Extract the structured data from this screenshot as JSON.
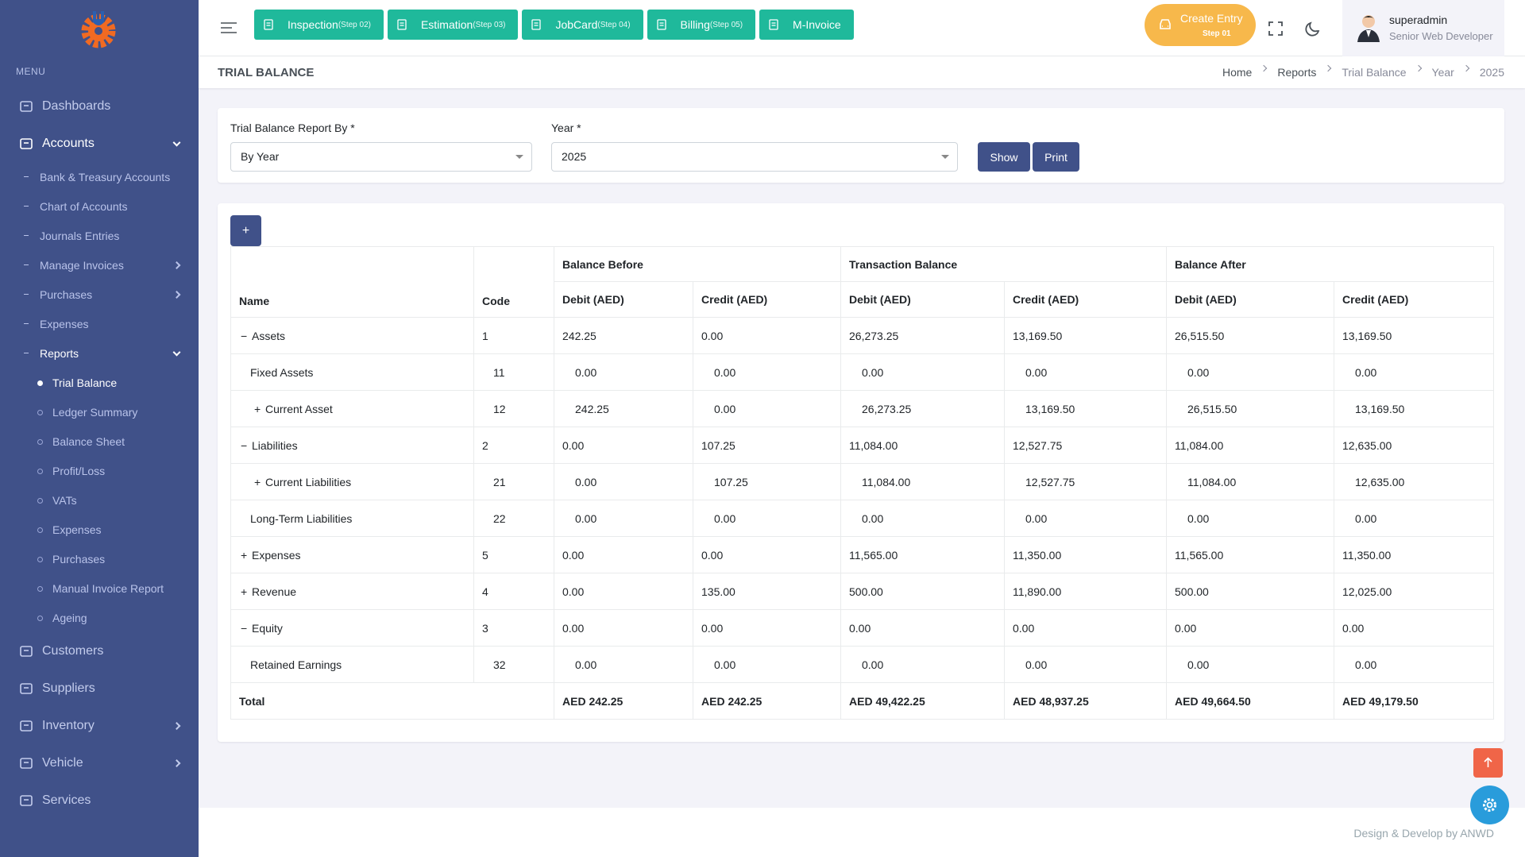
{
  "sidebar": {
    "menu_label": "MENU",
    "items": [
      {
        "label": "Dashboards"
      },
      {
        "label": "Accounts",
        "expanded": true,
        "active": true,
        "children": [
          {
            "label": "Bank & Treasury Accounts"
          },
          {
            "label": "Chart of Accounts"
          },
          {
            "label": "Journals Entries"
          },
          {
            "label": "Manage Invoices",
            "expanded": false
          },
          {
            "label": "Purchases",
            "expanded": false
          },
          {
            "label": "Expenses"
          },
          {
            "label": "Reports",
            "expanded": true,
            "active": true,
            "children": [
              {
                "label": "Trial Balance",
                "active": true
              },
              {
                "label": "Ledger Summary"
              },
              {
                "label": "Balance Sheet"
              },
              {
                "label": "Profit/Loss"
              },
              {
                "label": "VATs"
              },
              {
                "label": "Expenses"
              },
              {
                "label": "Purchases"
              },
              {
                "label": "Manual Invoice Report"
              },
              {
                "label": "Ageing"
              }
            ]
          }
        ]
      },
      {
        "label": "Customers"
      },
      {
        "label": "Suppliers"
      },
      {
        "label": "Inventory",
        "expanded": false
      },
      {
        "label": "Vehicle",
        "expanded": false
      },
      {
        "label": "Services"
      }
    ]
  },
  "topbar": {
    "steps": [
      {
        "label": "Inspection",
        "step": "(Step 02)"
      },
      {
        "label": "Estimation",
        "step": "(Step 03)"
      },
      {
        "label": "JobCard",
        "step": "(Step 04)"
      },
      {
        "label": "Billing",
        "step": "(Step 05)"
      },
      {
        "label": "M-Invoice"
      }
    ],
    "create_entry": {
      "label": "Create Entry",
      "step": "Step 01"
    },
    "user": {
      "name": "superadmin",
      "role": "Senior Web Developer"
    }
  },
  "page": {
    "title": "TRIAL BALANCE",
    "breadcrumbs": [
      "Home",
      "Reports",
      "Trial Balance",
      "Year",
      "2025"
    ]
  },
  "form": {
    "fields": [
      {
        "label": "Trial Balance Report By *",
        "value": "By Year"
      },
      {
        "label": "Year *",
        "value": "2025"
      }
    ],
    "buttons": [
      "Show",
      "Print"
    ]
  },
  "table": {
    "add_button": "+",
    "group_headers": [
      "Balance Before",
      "Transaction Balance",
      "Balance After"
    ],
    "headers": [
      "Name",
      "Code",
      "Debit (AED)",
      "Credit (AED)",
      "Debit (AED)",
      "Credit (AED)",
      "Debit (AED)",
      "Credit (AED)"
    ],
    "rows": [
      {
        "toggle": "−",
        "name": "Assets",
        "code": "1",
        "level": 0,
        "values": [
          "242.25",
          "0.00",
          "26,273.25",
          "13,169.50",
          "26,515.50",
          "13,169.50"
        ]
      },
      {
        "name": "Fixed Assets",
        "code": "11",
        "level": 1,
        "values": [
          "0.00",
          "0.00",
          "0.00",
          "0.00",
          "0.00",
          "0.00"
        ]
      },
      {
        "toggle": "+",
        "name": "Current Asset",
        "code": "12",
        "level": 1,
        "values": [
          "242.25",
          "0.00",
          "26,273.25",
          "13,169.50",
          "26,515.50",
          "13,169.50"
        ]
      },
      {
        "toggle": "−",
        "name": "Liabilities",
        "code": "2",
        "level": 0,
        "values": [
          "0.00",
          "107.25",
          "11,084.00",
          "12,527.75",
          "11,084.00",
          "12,635.00"
        ]
      },
      {
        "toggle": "+",
        "name": "Current Liabilities",
        "code": "21",
        "level": 1,
        "values": [
          "0.00",
          "107.25",
          "11,084.00",
          "12,527.75",
          "11,084.00",
          "12,635.00"
        ]
      },
      {
        "name": "Long-Term Liabilities",
        "code": "22",
        "level": 1,
        "values": [
          "0.00",
          "0.00",
          "0.00",
          "0.00",
          "0.00",
          "0.00"
        ]
      },
      {
        "toggle": "+",
        "name": "Expenses",
        "code": "5",
        "level": 0,
        "values": [
          "0.00",
          "0.00",
          "11,565.00",
          "11,350.00",
          "11,565.00",
          "11,350.00"
        ]
      },
      {
        "toggle": "+",
        "name": "Revenue",
        "code": "4",
        "level": 0,
        "values": [
          "0.00",
          "135.00",
          "500.00",
          "11,890.00",
          "500.00",
          "12,025.00"
        ]
      },
      {
        "toggle": "−",
        "name": "Equity",
        "code": "3",
        "level": 0,
        "values": [
          "0.00",
          "0.00",
          "0.00",
          "0.00",
          "0.00",
          "0.00"
        ]
      },
      {
        "name": "Retained Earnings",
        "code": "32",
        "level": 1,
        "values": [
          "0.00",
          "0.00",
          "0.00",
          "0.00",
          "0.00",
          "0.00"
        ]
      }
    ],
    "total": {
      "label": "Total",
      "values": [
        "AED 242.25",
        "AED 242.25",
        "AED 49,422.25",
        "AED 48,937.25",
        "AED 49,664.50",
        "AED 49,179.50"
      ]
    }
  },
  "footer": "Design & Develop by ANWD"
}
